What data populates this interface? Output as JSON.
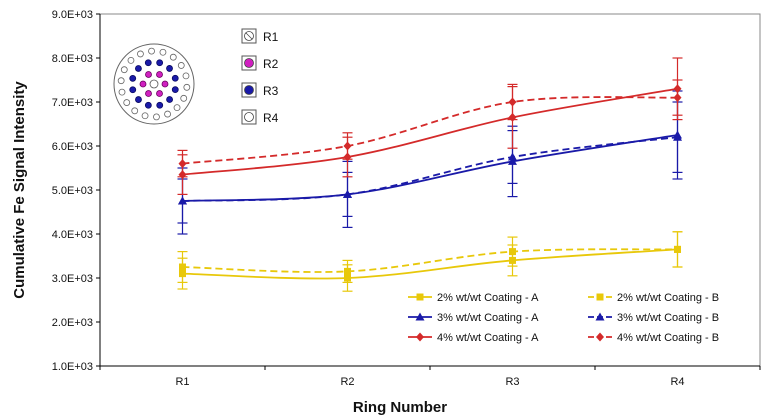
{
  "chart_data": {
    "type": "line",
    "title": "",
    "xlabel": "Ring Number",
    "ylabel": "Cumulative Fe Signal Intensity",
    "categories": [
      "R1",
      "R2",
      "R3",
      "R4"
    ],
    "yticks": [
      "1.0E+03",
      "2.0E+03",
      "3.0E+03",
      "4.0E+03",
      "5.0E+03",
      "6.0E+03",
      "7.0E+03",
      "8.0E+03",
      "9.0E+03"
    ],
    "ylim": [
      1000,
      9000
    ],
    "grid": false,
    "legend_position": "bottom-right",
    "series": [
      {
        "name": "2% wt/wt Coating - A",
        "color": "#e8c80a",
        "dash": false,
        "marker": "square",
        "values": [
          3100,
          3000,
          3400,
          3650
        ],
        "errors": [
          350,
          300,
          350,
          400
        ]
      },
      {
        "name": "2% wt/wt Coating - B",
        "color": "#e8c80a",
        "dash": true,
        "marker": "square",
        "values": [
          3250,
          3150,
          3600,
          3650
        ],
        "errors": [
          350,
          250,
          330,
          400
        ]
      },
      {
        "name": "3% wt/wt Coating - A",
        "color": "#1a1aa8",
        "dash": false,
        "marker": "triangle",
        "values": [
          4750,
          4900,
          5650,
          6250
        ],
        "errors": [
          750,
          750,
          800,
          1000
        ]
      },
      {
        "name": "3% wt/wt Coating - B",
        "color": "#1a1aa8",
        "dash": true,
        "marker": "triangle",
        "values": [
          4750,
          4900,
          5750,
          6200
        ],
        "errors": [
          500,
          500,
          600,
          800
        ]
      },
      {
        "name": "4% wt/wt Coating - A",
        "color": "#d42a2a",
        "dash": false,
        "marker": "diamond",
        "values": [
          5350,
          5750,
          6650,
          7300
        ],
        "errors": [
          450,
          450,
          700,
          700
        ]
      },
      {
        "name": "4% wt/wt Coating - B",
        "color": "#d42a2a",
        "dash": true,
        "marker": "diamond",
        "values": [
          5600,
          6000,
          7000,
          7100
        ],
        "errors": [
          300,
          300,
          400,
          400
        ]
      }
    ],
    "inset_legend": [
      {
        "label": "R1",
        "ring": 1,
        "fill": "#ffffff"
      },
      {
        "label": "R2",
        "ring": 2,
        "fill": "#d020c0"
      },
      {
        "label": "R3",
        "ring": 3,
        "fill": "#1a1aa8"
      },
      {
        "label": "R4",
        "ring": 4,
        "fill": "#ffffff"
      }
    ]
  }
}
